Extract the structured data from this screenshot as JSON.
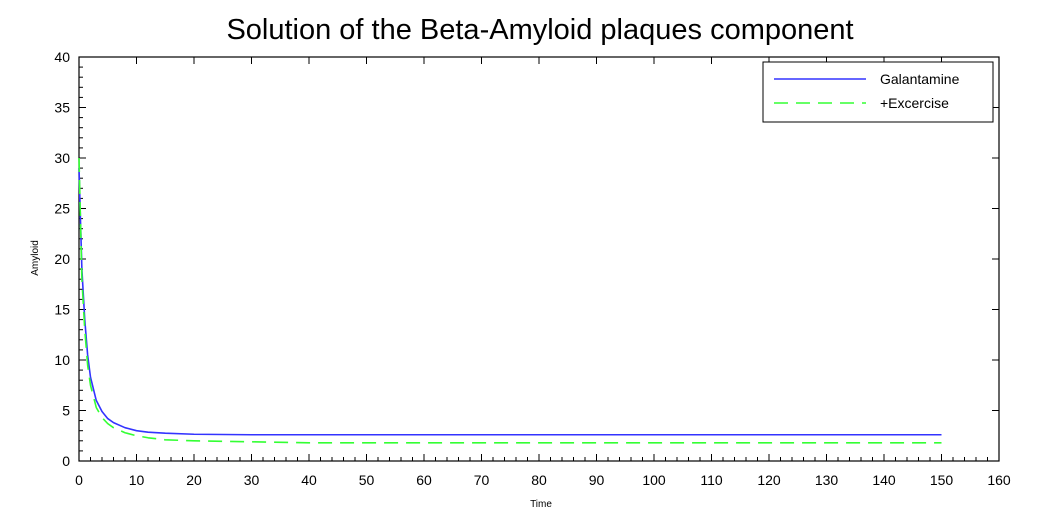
{
  "chart_data": {
    "type": "line",
    "title": "Solution of the Beta-Amyloid plaques component",
    "xlabel": "Time",
    "ylabel": "Amyloid",
    "xlim": [
      0,
      160
    ],
    "ylim": [
      0,
      40
    ],
    "xticks": [
      0,
      10,
      20,
      30,
      40,
      50,
      60,
      70,
      80,
      90,
      100,
      110,
      120,
      130,
      140,
      150,
      160
    ],
    "yticks": [
      0,
      5,
      10,
      15,
      20,
      25,
      30,
      35,
      40
    ],
    "grid": false,
    "legend_position": "top-right",
    "series": [
      {
        "name": "Galantamine",
        "color": "#3333ff",
        "style": "solid",
        "x": [
          0,
          0.5,
          1,
          1.5,
          2,
          3,
          4,
          5,
          6,
          8,
          10,
          12,
          15,
          20,
          30,
          40,
          60,
          80,
          100,
          120,
          150
        ],
        "y": [
          29,
          19,
          14,
          10.5,
          8.3,
          6.0,
          4.9,
          4.2,
          3.8,
          3.3,
          3.0,
          2.85,
          2.75,
          2.65,
          2.6,
          2.6,
          2.6,
          2.6,
          2.6,
          2.6,
          2.6
        ]
      },
      {
        "name": "+Excercise",
        "color": "#33ff33",
        "style": "dashed",
        "x": [
          0,
          0.5,
          1,
          1.5,
          2,
          3,
          4,
          5,
          6,
          8,
          10,
          12,
          15,
          20,
          30,
          40,
          60,
          80,
          100,
          120,
          150
        ],
        "y": [
          30,
          18,
          13,
          9.5,
          7.5,
          5.3,
          4.3,
          3.7,
          3.3,
          2.8,
          2.5,
          2.3,
          2.1,
          2.0,
          1.9,
          1.8,
          1.8,
          1.8,
          1.8,
          1.8,
          1.8
        ]
      }
    ]
  }
}
